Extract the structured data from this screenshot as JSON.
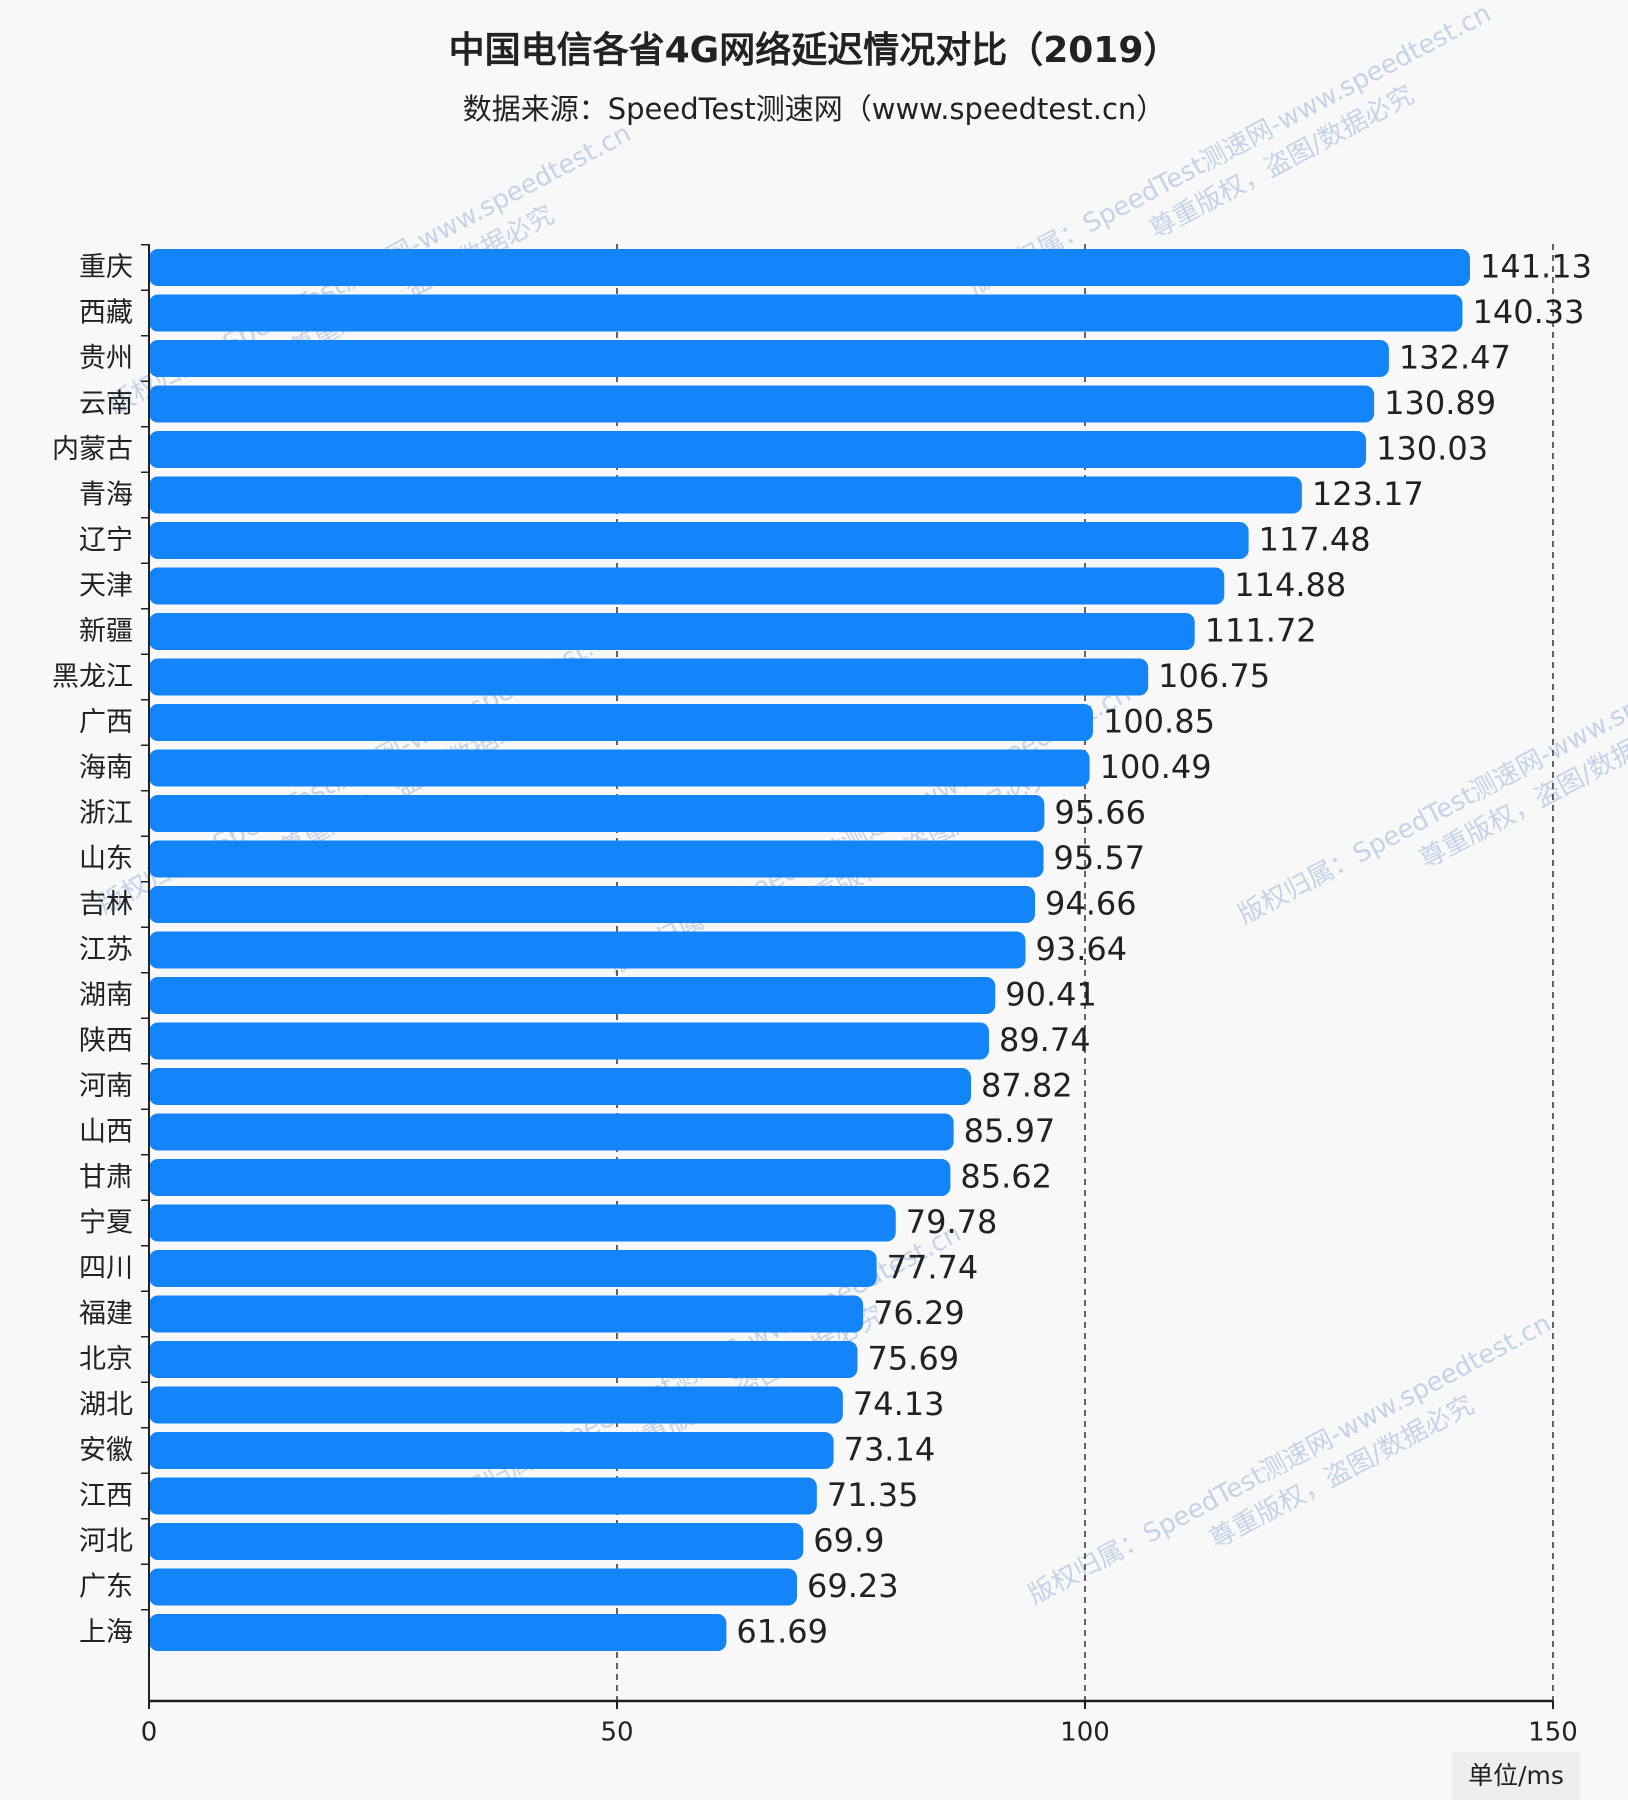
{
  "chart_data": {
    "type": "hbar",
    "title": "中国电信各省4G网络延迟情况对比（2019）",
    "subtitle": "数据来源：SpeedTest测速网（www.speedtest.cn）",
    "unit_label": "单位/ms",
    "watermark": [
      "版权归属：SpeedTest测速网-www.speedtest.cn",
      "尊重版权，盗图/数据必究"
    ],
    "categories": [
      "重庆",
      "西藏",
      "贵州",
      "云南",
      "内蒙古",
      "青海",
      "辽宁",
      "天津",
      "新疆",
      "黑龙江",
      "广西",
      "海南",
      "浙江",
      "山东",
      "吉林",
      "江苏",
      "湖南",
      "陕西",
      "河南",
      "山西",
      "甘肃",
      "宁夏",
      "四川",
      "福建",
      "北京",
      "湖北",
      "安徽",
      "江西",
      "河北",
      "广东",
      "上海"
    ],
    "values": [
      141.13,
      140.33,
      132.47,
      130.89,
      130.03,
      123.17,
      117.48,
      114.88,
      111.72,
      106.75,
      100.85,
      100.49,
      95.66,
      95.57,
      94.66,
      93.64,
      90.41,
      89.74,
      87.82,
      85.97,
      85.62,
      79.78,
      77.74,
      76.29,
      75.69,
      74.13,
      73.14,
      71.35,
      69.9,
      69.23,
      61.69
    ],
    "color": "#1485f8",
    "xlim": [
      0,
      150
    ],
    "xticks": [
      0,
      50,
      100,
      150
    ],
    "grid": true
  }
}
